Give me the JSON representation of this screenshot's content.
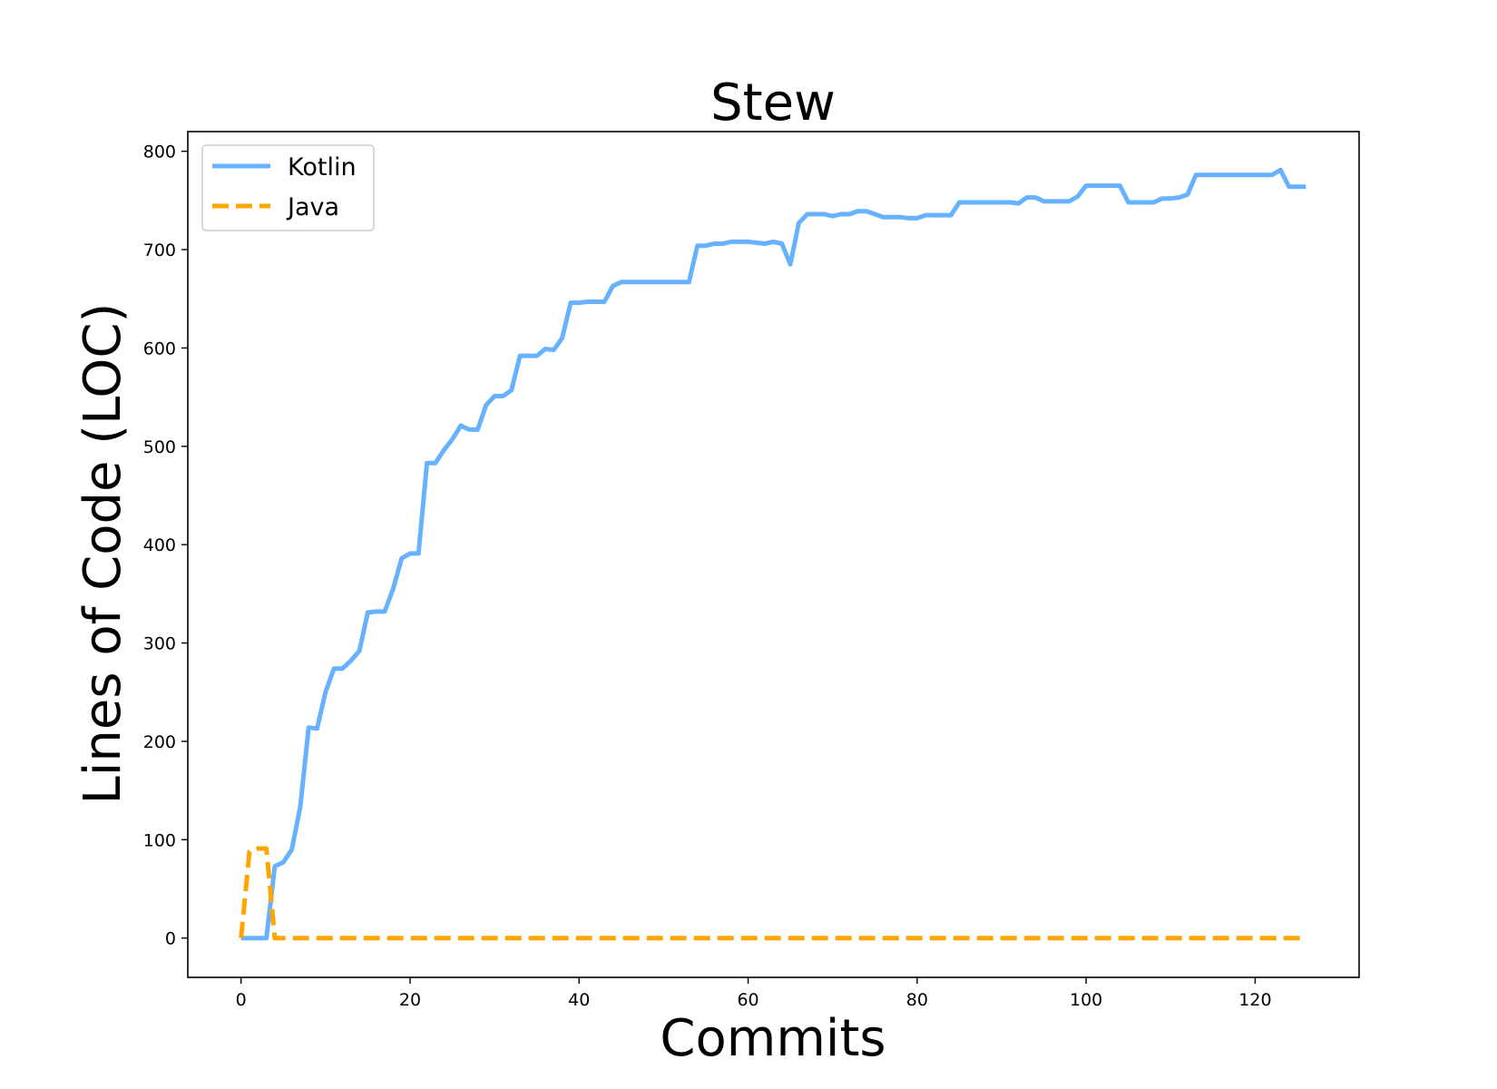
{
  "chart_data": {
    "type": "line",
    "title": "Stew",
    "xlabel": "Commits",
    "ylabel": "Lines of Code (LOC)",
    "xlim": [
      -6.3,
      132.3
    ],
    "ylim": [
      -40,
      820
    ],
    "xticks": [
      0,
      20,
      40,
      60,
      80,
      100,
      120
    ],
    "yticks": [
      0,
      100,
      200,
      300,
      400,
      500,
      600,
      700,
      800
    ],
    "grid": false,
    "legend": "top-left",
    "series": [
      {
        "name": "Kotlin",
        "color": "#66b2ff",
        "style": "solid",
        "x": [
          0,
          1,
          2,
          3,
          4,
          5,
          6,
          7,
          8,
          9,
          10,
          11,
          12,
          13,
          14,
          15,
          16,
          17,
          18,
          19,
          20,
          21,
          22,
          23,
          24,
          25,
          26,
          27,
          28,
          29,
          30,
          31,
          32,
          33,
          34,
          35,
          36,
          37,
          38,
          39,
          40,
          41,
          42,
          43,
          44,
          45,
          46,
          47,
          48,
          49,
          50,
          51,
          52,
          53,
          54,
          55,
          56,
          57,
          58,
          59,
          60,
          61,
          62,
          63,
          64,
          65,
          66,
          67,
          68,
          69,
          70,
          71,
          72,
          73,
          74,
          75,
          76,
          77,
          78,
          79,
          80,
          81,
          82,
          83,
          84,
          85,
          86,
          87,
          88,
          89,
          90,
          91,
          92,
          93,
          94,
          95,
          96,
          97,
          98,
          99,
          100,
          101,
          102,
          103,
          104,
          105,
          106,
          107,
          108,
          109,
          110,
          111,
          112,
          113,
          114,
          115,
          116,
          117,
          118,
          119,
          120,
          121,
          122,
          123,
          124,
          125,
          126
        ],
        "values": [
          0,
          0,
          0,
          0,
          73,
          77,
          90,
          133,
          214,
          213,
          250,
          274,
          274,
          282,
          292,
          331,
          332,
          332,
          355,
          386,
          391,
          391,
          483,
          483,
          496,
          507,
          521,
          517,
          517,
          542,
          551,
          551,
          557,
          592,
          592,
          592,
          599,
          598,
          610,
          646,
          646,
          647,
          647,
          647,
          663,
          667,
          667,
          667,
          667,
          667,
          667,
          667,
          667,
          667,
          704,
          704,
          706,
          706,
          708,
          708,
          708,
          707,
          706,
          708,
          706,
          685,
          727,
          736,
          736,
          736,
          734,
          736,
          736,
          739,
          739,
          736,
          733,
          733,
          733,
          732,
          732,
          735,
          735,
          735,
          735,
          748,
          748,
          748,
          748,
          748,
          748,
          748,
          747,
          753,
          753,
          749,
          749,
          749,
          749,
          754,
          765,
          765,
          765,
          765,
          765,
          748,
          748,
          748,
          748,
          752,
          752,
          753,
          756,
          776,
          776,
          776,
          776,
          776,
          776,
          776,
          776,
          776,
          776,
          781,
          764,
          764,
          764
        ]
      },
      {
        "name": "Java",
        "color": "#ffa500",
        "style": "dashed",
        "x": [
          0,
          1,
          2,
          3,
          4,
          5,
          10,
          20,
          40,
          60,
          80,
          100,
          120,
          126
        ],
        "values": [
          0,
          88,
          91,
          91,
          0,
          0,
          0,
          0,
          0,
          0,
          0,
          0,
          0,
          0
        ]
      }
    ]
  }
}
